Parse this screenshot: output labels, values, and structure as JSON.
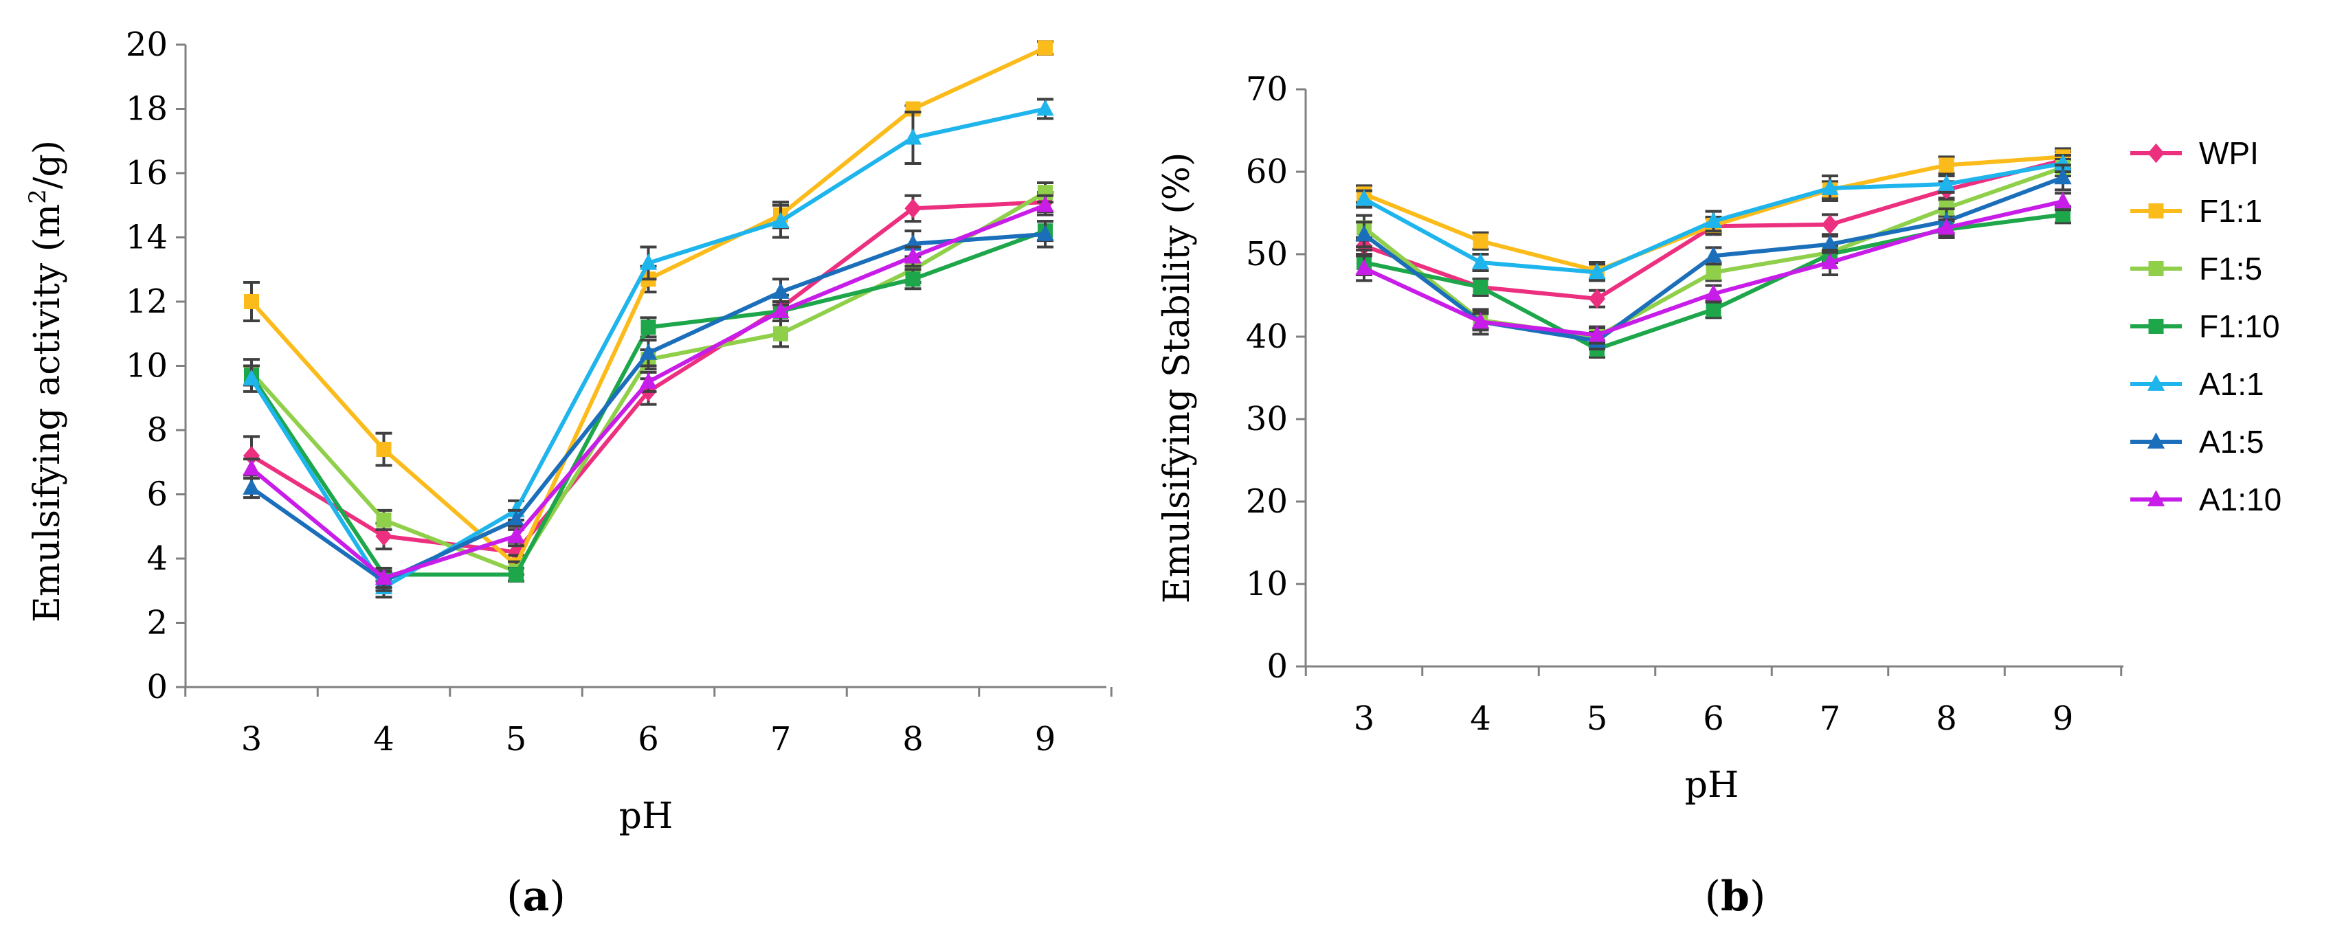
{
  "charts": [
    {
      "panel_label": "a",
      "ylabel_main": "Emulsifying activity (m",
      "ylabel_sup": "2",
      "ylabel_tail": "/g)"
    },
    {
      "panel_label": "b",
      "ylabel_main": "Emulsifying Stability (%)"
    }
  ],
  "legend": {
    "entries": [
      "WPI",
      "F1:1",
      "F1:5",
      "F1:10",
      "A1:1",
      "A1:5",
      "A1:10"
    ]
  },
  "chart_data": [
    {
      "type": "line",
      "title": "",
      "xlabel": "pH",
      "ylabel": "Emulsifying activity (m2/g)",
      "categories": [
        "3",
        "4",
        "5",
        "6",
        "7",
        "8",
        "9"
      ],
      "ylim": [
        0,
        20
      ],
      "yticks": [
        "0",
        "2",
        "4",
        "6",
        "8",
        "10",
        "12",
        "14",
        "16",
        "18",
        "20"
      ],
      "series": [
        {
          "name": "WPI",
          "color": "#ec2f7f",
          "marker": "diamond",
          "values": [
            7.2,
            4.7,
            4.2,
            9.2,
            11.8,
            14.9,
            15.1
          ],
          "errors": [
            0.6,
            0.4,
            0.3,
            0.4,
            0.4,
            0.4,
            0.3
          ]
        },
        {
          "name": "F1:1",
          "color": "#fbbb1a",
          "marker": "square",
          "values": [
            12.0,
            7.4,
            3.8,
            12.7,
            14.7,
            18.0,
            19.9
          ],
          "errors": [
            0.6,
            0.5,
            0.3,
            0.4,
            0.4,
            0.1,
            0.2
          ]
        },
        {
          "name": "F1:5",
          "color": "#8fcf4a",
          "marker": "square",
          "values": [
            9.8,
            5.2,
            3.6,
            10.2,
            11.0,
            13.0,
            15.4
          ],
          "errors": [
            0.4,
            0.3,
            0.3,
            0.3,
            0.4,
            0.4,
            0.3
          ]
        },
        {
          "name": "F1:10",
          "color": "#1ea64b",
          "marker": "square",
          "values": [
            9.7,
            3.5,
            3.5,
            11.2,
            11.7,
            12.7,
            14.2
          ],
          "errors": [
            0.3,
            0.2,
            0.2,
            0.3,
            0.3,
            0.3,
            0.3
          ]
        },
        {
          "name": "A1:1",
          "color": "#1eb4ec",
          "marker": "triangle",
          "values": [
            9.6,
            3.1,
            5.5,
            13.2,
            14.5,
            17.1,
            18.0
          ],
          "errors": [
            0.4,
            0.3,
            0.3,
            0.5,
            0.5,
            0.8,
            0.3
          ]
        },
        {
          "name": "A1:5",
          "color": "#1b6fba",
          "marker": "triangle",
          "values": [
            6.2,
            3.3,
            5.2,
            10.4,
            12.3,
            13.8,
            14.1
          ],
          "errors": [
            0.3,
            0.3,
            0.3,
            0.4,
            0.4,
            0.4,
            0.4
          ]
        },
        {
          "name": "A1:10",
          "color": "#c81de8",
          "marker": "triangle",
          "values": [
            6.8,
            3.4,
            4.7,
            9.5,
            11.7,
            13.4,
            15.0
          ],
          "errors": [
            0.3,
            0.3,
            0.3,
            0.3,
            0.3,
            0.3,
            0.3
          ]
        }
      ]
    },
    {
      "type": "line",
      "title": "",
      "xlabel": "pH",
      "ylabel": "Emulsifying Stability (%)",
      "categories": [
        "3",
        "4",
        "5",
        "6",
        "7",
        "8",
        "9"
      ],
      "ylim": [
        0,
        70
      ],
      "yticks": [
        "0",
        "10",
        "20",
        "30",
        "40",
        "50",
        "60",
        "70"
      ],
      "series": [
        {
          "name": "WPI",
          "color": "#ec2f7f",
          "marker": "diamond",
          "values": [
            51.0,
            46.0,
            44.6,
            53.4,
            53.6,
            57.8,
            61.4
          ],
          "errors": [
            1.0,
            1.0,
            1.0,
            1.0,
            1.2,
            1.0,
            1.0
          ]
        },
        {
          "name": "F1:1",
          "color": "#fbbb1a",
          "marker": "square",
          "values": [
            57.3,
            51.6,
            48.0,
            53.5,
            57.8,
            60.8,
            61.8
          ],
          "errors": [
            1.0,
            1.0,
            1.0,
            1.0,
            1.0,
            1.0,
            1.0
          ]
        },
        {
          "name": "F1:5",
          "color": "#8fcf4a",
          "marker": "square",
          "values": [
            53.2,
            42.0,
            40.0,
            47.8,
            50.2,
            55.6,
            60.5
          ],
          "errors": [
            1.5,
            1.0,
            1.0,
            1.0,
            1.0,
            1.0,
            1.0
          ]
        },
        {
          "name": "F1:10",
          "color": "#1ea64b",
          "marker": "square",
          "values": [
            49.0,
            46.0,
            38.5,
            43.3,
            50.0,
            53.0,
            54.8
          ],
          "errors": [
            1.5,
            1.0,
            1.0,
            1.0,
            1.0,
            1.0,
            1.0
          ]
        },
        {
          "name": "A1:1",
          "color": "#1eb4ec",
          "marker": "triangle",
          "values": [
            56.7,
            49.0,
            47.8,
            54.0,
            58.0,
            58.5,
            61.0
          ],
          "errors": [
            1.0,
            1.0,
            1.0,
            1.2,
            1.5,
            1.0,
            1.0
          ]
        },
        {
          "name": "A1:5",
          "color": "#1b6fba",
          "marker": "triangle",
          "values": [
            52.4,
            41.8,
            39.5,
            49.8,
            51.2,
            54.0,
            59.3
          ],
          "errors": [
            1.5,
            1.5,
            1.0,
            1.0,
            1.0,
            1.5,
            1.5
          ]
        },
        {
          "name": "A1:10",
          "color": "#c81de8",
          "marker": "triangle",
          "values": [
            48.3,
            41.8,
            40.2,
            45.2,
            49.0,
            53.2,
            56.4
          ],
          "errors": [
            1.5,
            1.0,
            1.0,
            1.0,
            1.5,
            1.0,
            1.0
          ]
        }
      ]
    }
  ]
}
